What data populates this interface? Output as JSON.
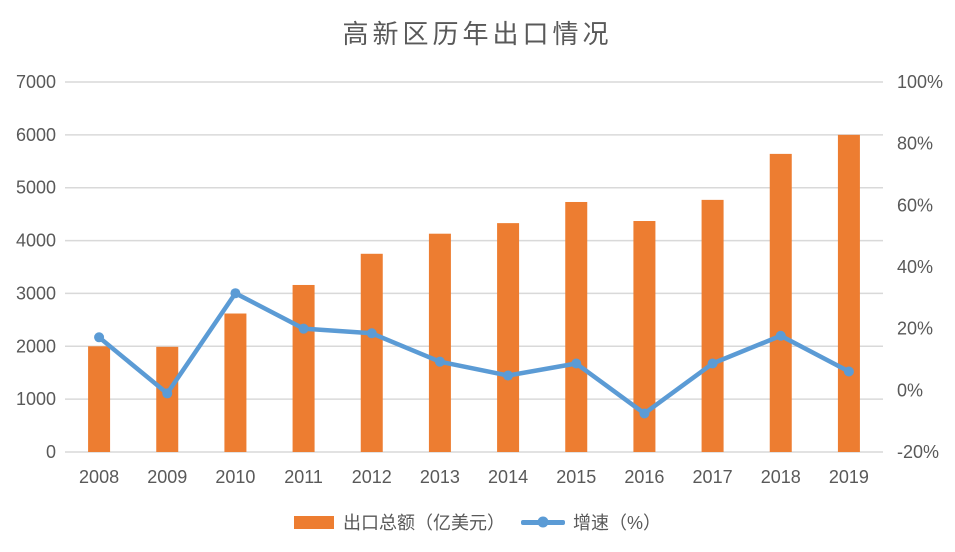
{
  "chart_data": {
    "type": "combo-bar-line",
    "title": "高新区历年出口情况",
    "categories": [
      "2008",
      "2009",
      "2010",
      "2011",
      "2012",
      "2013",
      "2014",
      "2015",
      "2016",
      "2017",
      "2018",
      "2019"
    ],
    "series": [
      {
        "name": "出口总额（亿美元）",
        "type": "bar",
        "axis": "left",
        "color": "#ED7D31",
        "values": [
          2000,
          1990,
          2620,
          3160,
          3750,
          4130,
          4330,
          4730,
          4370,
          4770,
          5640,
          6000
        ]
      },
      {
        "name": "增速（%）",
        "type": "line",
        "axis": "right",
        "color": "#5B9BD5",
        "values": [
          17.2,
          -1.0,
          31.5,
          20.0,
          18.5,
          9.3,
          4.8,
          8.7,
          -7.5,
          8.7,
          17.7,
          6.1
        ]
      }
    ],
    "left_axis": {
      "min": 0,
      "max": 7000,
      "step": 1000,
      "tick_labels": [
        "0",
        "1000",
        "2000",
        "3000",
        "4000",
        "5000",
        "6000",
        "7000"
      ]
    },
    "right_axis": {
      "min": -20,
      "max": 100,
      "step": 20,
      "tick_labels": [
        "-20%",
        "0%",
        "20%",
        "40%",
        "60%",
        "80%",
        "100%"
      ]
    },
    "grid": "horizontal-left-axis",
    "legend_position": "bottom",
    "colors": {
      "bar": "#ED7D31",
      "line": "#5B9BD5",
      "grid": "#D9D9D9",
      "text": "#595959",
      "background": "#FFFFFF"
    }
  }
}
